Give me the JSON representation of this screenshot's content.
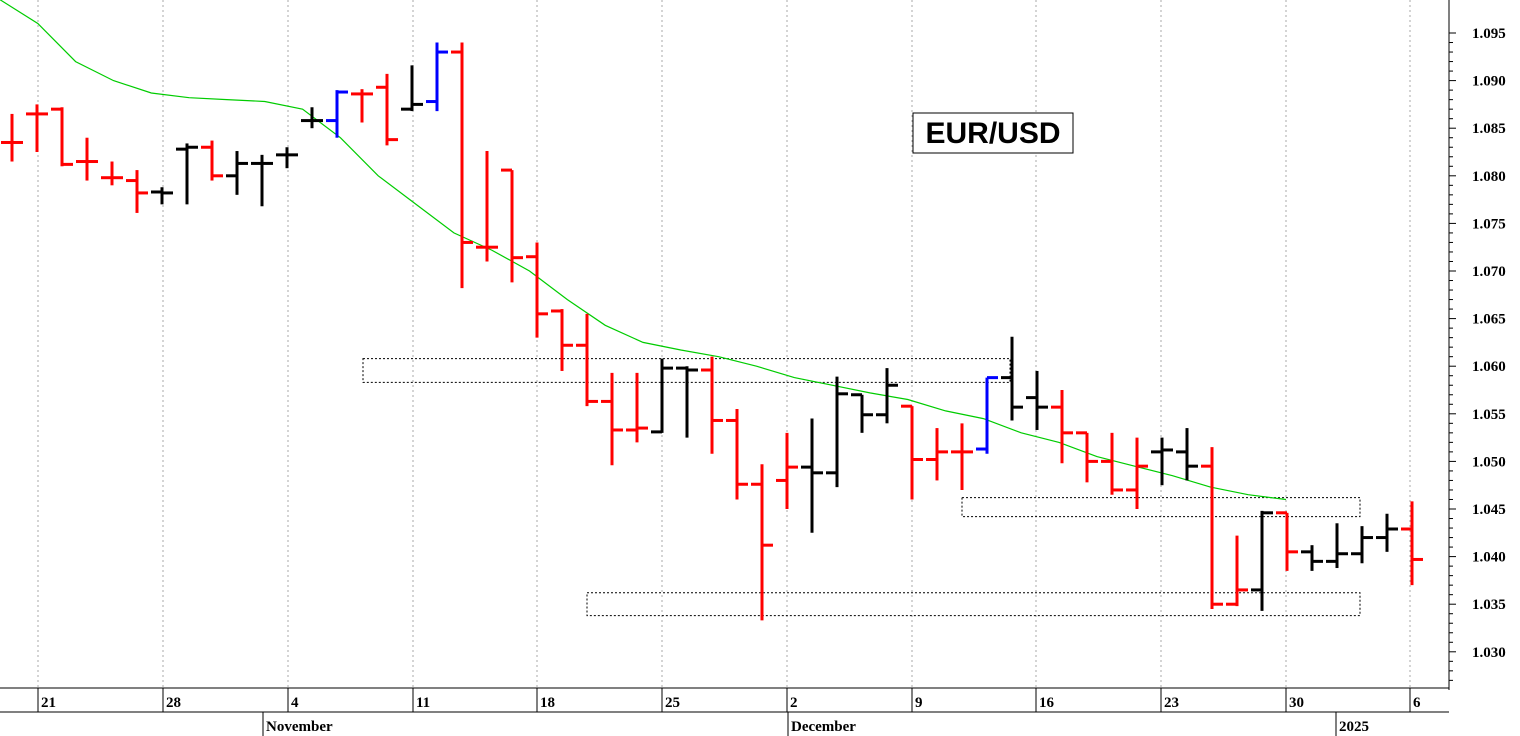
{
  "chart_data": {
    "type": "ohlc",
    "title": "EUR/USD",
    "y_axis": {
      "ticks": [
        "1.095",
        "1.090",
        "1.085",
        "1.080",
        "1.075",
        "1.070",
        "1.065",
        "1.060",
        "1.055",
        "1.050",
        "1.045",
        "1.040",
        "1.035",
        "1.030"
      ],
      "ylim": [
        1.025,
        1.098
      ]
    },
    "x_axis": {
      "day_ticks": [
        "21",
        "28",
        "4",
        "11",
        "18",
        "25",
        "2",
        "9",
        "16",
        "23",
        "30",
        "6"
      ],
      "month_labels": [
        "November",
        "December",
        "2025"
      ]
    },
    "grid": "vertical dotted",
    "bar_colors": {
      "up": "#000000",
      "down": "#ff0000",
      "neutral": "#0000ff"
    },
    "moving_average": {
      "color": "#00cc00"
    },
    "ohlc_bars": [
      {
        "open": 1.0835,
        "high": 1.0865,
        "low": 1.0815,
        "close": 1.0835,
        "color": "red"
      },
      {
        "open": 1.0865,
        "high": 1.0875,
        "low": 1.0825,
        "close": 1.0865,
        "color": "red"
      },
      {
        "open": 1.087,
        "high": 1.0872,
        "low": 1.081,
        "close": 1.0812,
        "color": "red"
      },
      {
        "open": 1.0815,
        "high": 1.084,
        "low": 1.0795,
        "close": 1.0815,
        "color": "red"
      },
      {
        "open": 1.0798,
        "high": 1.0815,
        "low": 1.079,
        "close": 1.0798,
        "color": "red"
      },
      {
        "open": 1.0795,
        "high": 1.0806,
        "low": 1.0761,
        "close": 1.0782,
        "color": "red"
      },
      {
        "open": 1.0783,
        "high": 1.0788,
        "low": 1.077,
        "close": 1.0782,
        "color": "black"
      },
      {
        "open": 1.0828,
        "high": 1.0834,
        "low": 1.077,
        "close": 1.083,
        "color": "black"
      },
      {
        "open": 1.083,
        "high": 1.0837,
        "low": 1.0795,
        "close": 1.08,
        "color": "red"
      },
      {
        "open": 1.08,
        "high": 1.0826,
        "low": 1.078,
        "close": 1.0813,
        "color": "black"
      },
      {
        "open": 1.0813,
        "high": 1.0822,
        "low": 1.0768,
        "close": 1.0813,
        "color": "black"
      },
      {
        "open": 1.0822,
        "high": 1.083,
        "low": 1.0808,
        "close": 1.0822,
        "color": "black"
      },
      {
        "open": 1.0858,
        "high": 1.0872,
        "low": 1.085,
        "close": 1.0858,
        "color": "black"
      },
      {
        "open": 1.0858,
        "high": 1.089,
        "low": 1.084,
        "close": 1.0888,
        "color": "blue"
      },
      {
        "open": 1.0886,
        "high": 1.0891,
        "low": 1.0856,
        "close": 1.0886,
        "color": "red"
      },
      {
        "open": 1.0893,
        "high": 1.0907,
        "low": 1.0832,
        "close": 1.0838,
        "color": "red"
      },
      {
        "open": 1.087,
        "high": 1.0916,
        "low": 1.0868,
        "close": 1.0875,
        "color": "black"
      },
      {
        "open": 1.0878,
        "high": 1.094,
        "low": 1.0868,
        "close": 1.093,
        "color": "blue"
      },
      {
        "open": 1.093,
        "high": 1.094,
        "low": 1.0682,
        "close": 1.073,
        "color": "red"
      },
      {
        "open": 1.0725,
        "high": 1.0826,
        "low": 1.071,
        "close": 1.0725,
        "color": "red"
      },
      {
        "open": 1.0806,
        "high": 1.0806,
        "low": 1.0688,
        "close": 1.0714,
        "color": "red"
      },
      {
        "open": 1.0715,
        "high": 1.073,
        "low": 1.063,
        "close": 1.0655,
        "color": "red"
      },
      {
        "open": 1.0658,
        "high": 1.066,
        "low": 1.0595,
        "close": 1.0622,
        "color": "red"
      },
      {
        "open": 1.0622,
        "high": 1.0655,
        "low": 1.0558,
        "close": 1.0563,
        "color": "red"
      },
      {
        "open": 1.0563,
        "high": 1.0593,
        "low": 1.0496,
        "close": 1.0533,
        "color": "red"
      },
      {
        "open": 1.0533,
        "high": 1.0593,
        "low": 1.052,
        "close": 1.0535,
        "color": "red"
      },
      {
        "open": 1.0531,
        "high": 1.0608,
        "low": 1.053,
        "close": 1.0598,
        "color": "black"
      },
      {
        "open": 1.0598,
        "high": 1.06,
        "low": 1.0525,
        "close": 1.0596,
        "color": "black"
      },
      {
        "open": 1.0596,
        "high": 1.061,
        "low": 1.0508,
        "close": 1.0543,
        "color": "red"
      },
      {
        "open": 1.0543,
        "high": 1.0555,
        "low": 1.046,
        "close": 1.0476,
        "color": "red"
      },
      {
        "open": 1.0476,
        "high": 1.0497,
        "low": 1.0333,
        "close": 1.0412,
        "color": "red"
      },
      {
        "open": 1.048,
        "high": 1.053,
        "low": 1.045,
        "close": 1.0494,
        "color": "red"
      },
      {
        "open": 1.0494,
        "high": 1.0545,
        "low": 1.0425,
        "close": 1.0488,
        "color": "black"
      },
      {
        "open": 1.0488,
        "high": 1.0589,
        "low": 1.0473,
        "close": 1.0571,
        "color": "black"
      },
      {
        "open": 1.057,
        "high": 1.057,
        "low": 1.053,
        "close": 1.0549,
        "color": "black"
      },
      {
        "open": 1.0549,
        "high": 1.0598,
        "low": 1.054,
        "close": 1.058,
        "color": "black"
      },
      {
        "open": 1.0558,
        "high": 1.0558,
        "low": 1.046,
        "close": 1.0502,
        "color": "red"
      },
      {
        "open": 1.0502,
        "high": 1.0535,
        "low": 1.048,
        "close": 1.051,
        "color": "red"
      },
      {
        "open": 1.051,
        "high": 1.054,
        "low": 1.047,
        "close": 1.051,
        "color": "red"
      },
      {
        "open": 1.0513,
        "high": 1.0588,
        "low": 1.0508,
        "close": 1.0588,
        "color": "blue"
      },
      {
        "open": 1.0588,
        "high": 1.0631,
        "low": 1.0543,
        "close": 1.0557,
        "color": "black"
      },
      {
        "open": 1.0567,
        "high": 1.0595,
        "low": 1.0533,
        "close": 1.0557,
        "color": "black"
      },
      {
        "open": 1.0557,
        "high": 1.0575,
        "low": 1.0498,
        "close": 1.053,
        "color": "red"
      },
      {
        "open": 1.053,
        "high": 1.053,
        "low": 1.0478,
        "close": 1.05,
        "color": "red"
      },
      {
        "open": 1.05,
        "high": 1.053,
        "low": 1.0465,
        "close": 1.047,
        "color": "red"
      },
      {
        "open": 1.047,
        "high": 1.0525,
        "low": 1.045,
        "close": 1.0495,
        "color": "red"
      },
      {
        "open": 1.051,
        "high": 1.0525,
        "low": 1.0475,
        "close": 1.0512,
        "color": "black"
      },
      {
        "open": 1.051,
        "high": 1.0535,
        "low": 1.048,
        "close": 1.0495,
        "color": "black"
      },
      {
        "open": 1.0495,
        "high": 1.0515,
        "low": 1.0345,
        "close": 1.035,
        "color": "red"
      },
      {
        "open": 1.035,
        "high": 1.0422,
        "low": 1.0348,
        "close": 1.0365,
        "color": "red"
      },
      {
        "open": 1.0365,
        "high": 1.0448,
        "low": 1.0343,
        "close": 1.0446,
        "color": "black"
      },
      {
        "open": 1.0446,
        "high": 1.0446,
        "low": 1.0385,
        "close": 1.0405,
        "color": "red"
      },
      {
        "open": 1.0405,
        "high": 1.0412,
        "low": 1.0385,
        "close": 1.0395,
        "color": "black"
      },
      {
        "open": 1.0395,
        "high": 1.0435,
        "low": 1.0388,
        "close": 1.0403,
        "color": "black"
      },
      {
        "open": 1.0403,
        "high": 1.0432,
        "low": 1.0393,
        "close": 1.042,
        "color": "black"
      },
      {
        "open": 1.042,
        "high": 1.0445,
        "low": 1.0405,
        "close": 1.0429,
        "color": "black"
      },
      {
        "open": 1.0429,
        "high": 1.0458,
        "low": 1.037,
        "close": 1.0397,
        "color": "red"
      }
    ],
    "moving_average_values": [
      1.0985,
      1.096,
      1.092,
      1.09,
      1.0887,
      1.0882,
      1.088,
      1.0878,
      1.087,
      1.084,
      1.08,
      1.077,
      1.074,
      1.0722,
      1.07,
      1.067,
      1.0643,
      1.0625,
      1.0617,
      1.061,
      1.06,
      1.0588,
      1.058,
      1.0572,
      1.0565,
      1.0553,
      1.0545,
      1.053,
      1.052,
      1.0505,
      1.0495,
      1.0485,
      1.0473,
      1.0465,
      1.046
    ],
    "support_resistance_zones": [
      {
        "from": 1.0583,
        "to": 1.0608
      },
      {
        "from": 1.0442,
        "to": 1.0462
      },
      {
        "from": 1.0338,
        "to": 1.0362
      }
    ]
  }
}
